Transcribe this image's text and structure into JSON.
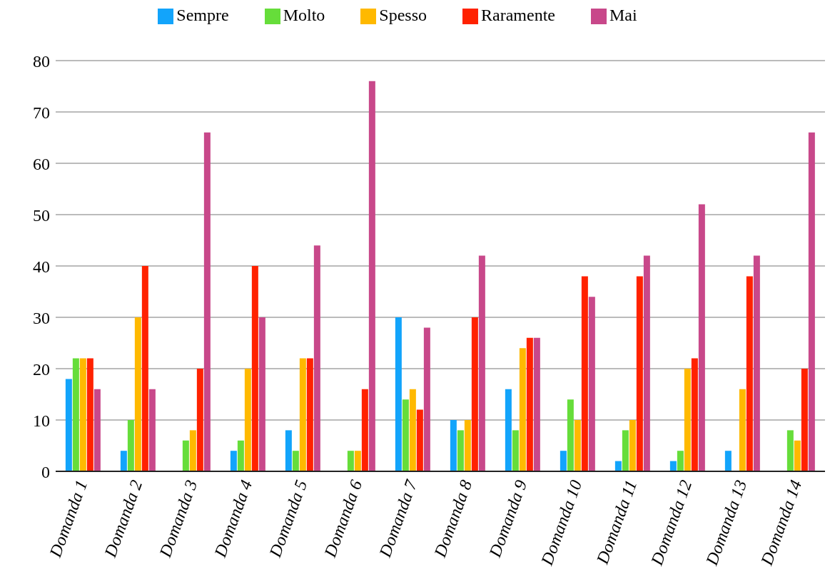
{
  "chart_data": {
    "type": "bar",
    "categories": [
      "Domanda 1",
      "Domanda 2",
      "Domanda 3",
      "Domanda 4",
      "Domanda 5",
      "Domanda 6",
      "Domanda 7",
      "Domanda 8",
      "Domanda 9",
      "Domanda 10",
      "Domanda 11",
      "Domanda 12",
      "Domanda 13",
      "Domanda 14"
    ],
    "series": [
      {
        "name": "Sempre",
        "color": "#12a4fb",
        "values": [
          18,
          4,
          0,
          4,
          8,
          0,
          30,
          10,
          16,
          4,
          2,
          2,
          4,
          0
        ]
      },
      {
        "name": "Molto",
        "color": "#66dd3a",
        "values": [
          22,
          10,
          6,
          6,
          4,
          4,
          14,
          8,
          8,
          14,
          8,
          4,
          0,
          8
        ]
      },
      {
        "name": "Spesso",
        "color": "#ffb900",
        "values": [
          22,
          30,
          8,
          20,
          22,
          4,
          16,
          10,
          24,
          10,
          10,
          20,
          16,
          6
        ]
      },
      {
        "name": "Raramente",
        "color": "#ff2200",
        "values": [
          22,
          40,
          20,
          40,
          22,
          16,
          12,
          30,
          26,
          38,
          38,
          22,
          38,
          20
        ]
      },
      {
        "name": "Mai",
        "color": "#c8488a",
        "values": [
          16,
          16,
          66,
          30,
          44,
          76,
          28,
          42,
          26,
          34,
          42,
          52,
          42,
          66
        ]
      }
    ],
    "ylim": [
      0,
      80
    ],
    "yticks": [
      0,
      10,
      20,
      30,
      40,
      50,
      60,
      70,
      80
    ],
    "grid": "y",
    "legend": "top"
  }
}
